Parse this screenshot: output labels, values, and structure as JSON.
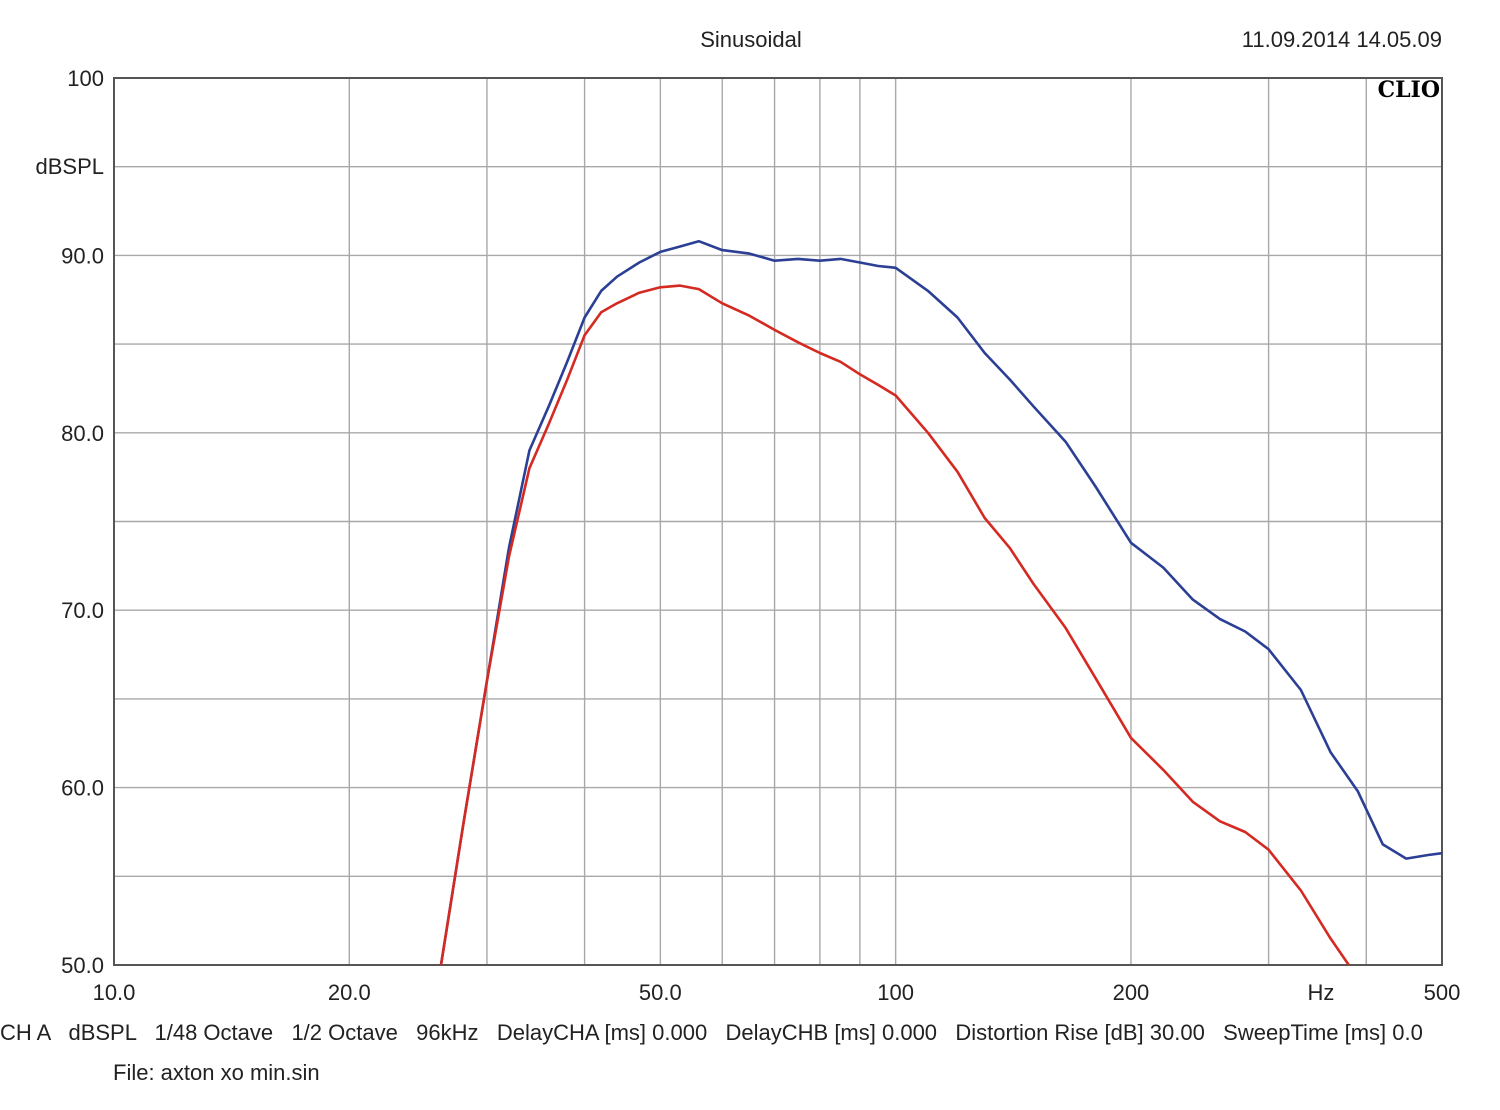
{
  "header": {
    "title": "Sinusoidal",
    "timestamp": "11.09.2014 14.05.09",
    "logo": "CLIO"
  },
  "footer": {
    "settings": "CH A   dBSPL   1/48 Octave   1/2 Octave   96kHz   DelayCHA [ms] 0.000   DelayCHB [ms] 0.000   Distortion Rise [dB] 30.00   SweepTime [ms] 0.0",
    "file": "File: axton xo min.sin"
  },
  "chart_data": {
    "type": "line",
    "title": "Sinusoidal",
    "xlabel": "Hz",
    "ylabel": "dBSPL",
    "x_scale": "log",
    "xlim": [
      10,
      500
    ],
    "ylim": [
      50,
      100
    ],
    "grid": true,
    "x_tick_labels": [
      {
        "value": 10,
        "label": "10.0"
      },
      {
        "value": 20,
        "label": "20.0"
      },
      {
        "value": 50,
        "label": "50.0"
      },
      {
        "value": 100,
        "label": "100"
      },
      {
        "value": 200,
        "label": "200"
      },
      {
        "value": 500,
        "label": "500"
      }
    ],
    "x_gridlines": [
      10,
      20,
      30,
      40,
      50,
      60,
      70,
      80,
      90,
      100,
      200,
      300,
      400,
      500
    ],
    "y_tick_labels": [
      {
        "value": 50,
        "label": "50.0"
      },
      {
        "value": 60,
        "label": "60.0"
      },
      {
        "value": 70,
        "label": "70.0"
      },
      {
        "value": 80,
        "label": "80.0"
      },
      {
        "value": 90,
        "label": "90.0"
      },
      {
        "value": 100,
        "label": "100"
      }
    ],
    "y_gridlines": [
      50,
      55,
      60,
      65,
      70,
      75,
      80,
      85,
      90,
      95,
      100
    ],
    "series": [
      {
        "color": "#2b3f94",
        "x": [
          26.2,
          28,
          30,
          32,
          34,
          36,
          38,
          40,
          42,
          44,
          47,
          50,
          53,
          56,
          60,
          65,
          70,
          75,
          80,
          85,
          90,
          95,
          100,
          110,
          120,
          130,
          140,
          150,
          165,
          180,
          200,
          220,
          240,
          260,
          280,
          300,
          330,
          360,
          390,
          420,
          450,
          480,
          500
        ],
        "y": [
          50.0,
          58.0,
          66.0,
          73.5,
          79.0,
          81.5,
          84.0,
          86.5,
          88.0,
          88.8,
          89.6,
          90.2,
          90.5,
          90.8,
          90.3,
          90.1,
          89.7,
          89.8,
          89.7,
          89.8,
          89.6,
          89.4,
          89.3,
          88.0,
          86.5,
          84.5,
          83.0,
          81.5,
          79.5,
          77.0,
          73.8,
          72.4,
          70.6,
          69.5,
          68.8,
          67.8,
          65.5,
          62.0,
          59.8,
          56.8,
          56.0,
          56.2,
          56.3
        ]
      },
      {
        "color": "#d42a22",
        "x": [
          26.2,
          28,
          30,
          32,
          34,
          36,
          38,
          40,
          42,
          44,
          47,
          50,
          53,
          56,
          60,
          65,
          70,
          75,
          80,
          85,
          90,
          95,
          100,
          110,
          120,
          130,
          140,
          150,
          165,
          180,
          200,
          220,
          240,
          260,
          280,
          300,
          330,
          360,
          380
        ],
        "y": [
          50.0,
          58.0,
          66.0,
          73.0,
          78.0,
          80.5,
          83.0,
          85.5,
          86.8,
          87.3,
          87.9,
          88.2,
          88.3,
          88.1,
          87.3,
          86.6,
          85.8,
          85.1,
          84.5,
          84.0,
          83.3,
          82.7,
          82.1,
          80.0,
          77.8,
          75.2,
          73.5,
          71.5,
          69.0,
          66.2,
          62.8,
          61.0,
          59.2,
          58.1,
          57.5,
          56.5,
          54.2,
          51.5,
          50.0
        ]
      }
    ]
  }
}
